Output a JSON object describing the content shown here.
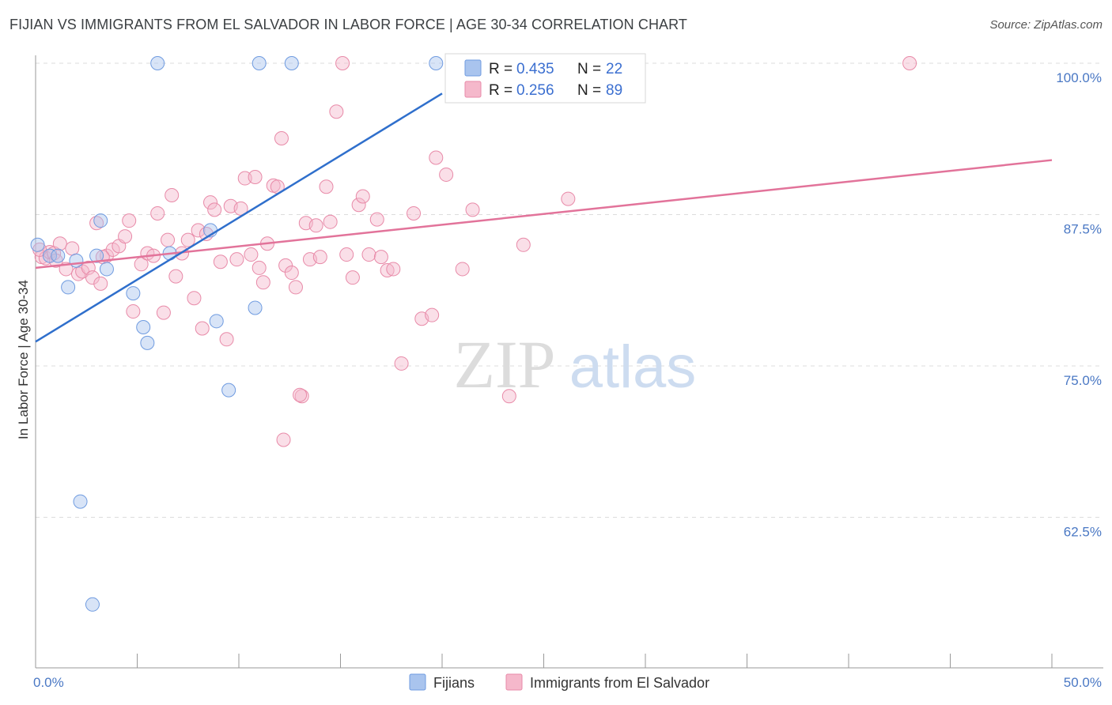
{
  "title": "FIJIAN VS IMMIGRANTS FROM EL SALVADOR IN LABOR FORCE | AGE 30-34 CORRELATION CHART",
  "source": "Source: ZipAtlas.com",
  "colors": {
    "blue_fill": "#a9c4ee",
    "blue_stroke": "#6f9be0",
    "blue_line": "#2f6fcc",
    "pink_fill": "#f5b8cb",
    "pink_stroke": "#e88aa8",
    "pink_line": "#e2739a",
    "grid": "#dcdcdc",
    "axis_text": "#4a78c4"
  },
  "chart_data": {
    "type": "scatter",
    "title": "FIJIAN VS IMMIGRANTS FROM EL SALVADOR IN LABOR FORCE | AGE 30-34 CORRELATION CHART",
    "xlabel": "",
    "ylabel": "In Labor Force | Age 30-34",
    "xlim": [
      0,
      50
    ],
    "ylim": [
      50,
      102
    ],
    "x_tick_labels": [
      "0.0%",
      "50.0%"
    ],
    "y_ticks": [
      62.5,
      75.0,
      87.5,
      100.0
    ],
    "y_tick_labels": [
      "62.5%",
      "75.0%",
      "87.5%",
      "100.0%"
    ],
    "grid": true,
    "legend_position": "top-center",
    "watermark": "ZIPatlas",
    "series": [
      {
        "name": "Fijians",
        "color": "blue",
        "R": "0.435",
        "N": "22",
        "trend": {
          "x": [
            0,
            20
          ],
          "y": [
            77.0,
            97.5
          ]
        },
        "points": [
          [
            0.1,
            85.0
          ],
          [
            0.7,
            84.1
          ],
          [
            1.1,
            84.1
          ],
          [
            1.6,
            81.5
          ],
          [
            2.0,
            83.7
          ],
          [
            2.2,
            63.8
          ],
          [
            2.8,
            55.3
          ],
          [
            3.0,
            84.1
          ],
          [
            3.2,
            87.0
          ],
          [
            4.8,
            81.0
          ],
          [
            5.3,
            78.2
          ],
          [
            5.5,
            76.9
          ],
          [
            6.0,
            100.0
          ],
          [
            6.6,
            84.3
          ],
          [
            8.6,
            86.2
          ],
          [
            8.9,
            78.7
          ],
          [
            9.5,
            73.0
          ],
          [
            10.8,
            79.8
          ],
          [
            11.0,
            100.0
          ],
          [
            12.6,
            100.0
          ],
          [
            19.7,
            100.0
          ],
          [
            3.5,
            83.0
          ]
        ]
      },
      {
        "name": "Immigrants from El Salvador",
        "color": "pink",
        "R": "0.256",
        "N": "89",
        "trend": {
          "x": [
            0,
            50
          ],
          "y": [
            83.1,
            92.0
          ]
        },
        "points": [
          [
            0.3,
            84.0
          ],
          [
            0.5,
            83.9
          ],
          [
            0.7,
            84.4
          ],
          [
            0.9,
            84.3
          ],
          [
            1.0,
            83.7
          ],
          [
            1.2,
            85.1
          ],
          [
            1.5,
            83.0
          ],
          [
            1.8,
            84.7
          ],
          [
            2.1,
            82.6
          ],
          [
            2.3,
            82.8
          ],
          [
            2.6,
            83.1
          ],
          [
            2.8,
            82.3
          ],
          [
            3.0,
            86.8
          ],
          [
            3.2,
            81.8
          ],
          [
            3.5,
            84.1
          ],
          [
            3.8,
            84.6
          ],
          [
            4.1,
            84.9
          ],
          [
            4.4,
            85.7
          ],
          [
            4.6,
            87.0
          ],
          [
            4.8,
            79.5
          ],
          [
            5.2,
            83.4
          ],
          [
            5.5,
            84.3
          ],
          [
            5.8,
            84.1
          ],
          [
            6.0,
            87.6
          ],
          [
            6.3,
            79.4
          ],
          [
            6.5,
            85.4
          ],
          [
            6.7,
            89.1
          ],
          [
            6.9,
            82.4
          ],
          [
            7.2,
            84.3
          ],
          [
            7.5,
            85.4
          ],
          [
            7.8,
            80.6
          ],
          [
            8.0,
            86.2
          ],
          [
            8.2,
            78.1
          ],
          [
            8.4,
            85.9
          ],
          [
            8.6,
            88.5
          ],
          [
            8.8,
            87.9
          ],
          [
            9.1,
            83.6
          ],
          [
            9.4,
            77.2
          ],
          [
            9.6,
            88.2
          ],
          [
            9.9,
            83.8
          ],
          [
            10.1,
            88.0
          ],
          [
            10.3,
            90.5
          ],
          [
            10.6,
            84.2
          ],
          [
            10.8,
            90.6
          ],
          [
            11.0,
            83.1
          ],
          [
            11.2,
            81.9
          ],
          [
            11.4,
            85.1
          ],
          [
            11.7,
            89.9
          ],
          [
            11.9,
            89.8
          ],
          [
            12.1,
            93.8
          ],
          [
            12.3,
            83.3
          ],
          [
            12.6,
            82.7
          ],
          [
            12.8,
            81.5
          ],
          [
            13.1,
            72.5
          ],
          [
            13.3,
            86.8
          ],
          [
            13.5,
            83.8
          ],
          [
            13.8,
            86.6
          ],
          [
            14.0,
            84.0
          ],
          [
            14.3,
            89.8
          ],
          [
            14.5,
            86.9
          ],
          [
            14.8,
            96.0
          ],
          [
            15.1,
            100.0
          ],
          [
            15.3,
            84.2
          ],
          [
            15.6,
            82.3
          ],
          [
            15.9,
            88.3
          ],
          [
            16.1,
            89.0
          ],
          [
            16.4,
            84.2
          ],
          [
            16.8,
            87.1
          ],
          [
            17.0,
            84.0
          ],
          [
            17.3,
            82.9
          ],
          [
            17.6,
            83.0
          ],
          [
            18.0,
            75.2
          ],
          [
            18.6,
            87.6
          ],
          [
            19.0,
            78.9
          ],
          [
            19.5,
            79.2
          ],
          [
            19.7,
            92.2
          ],
          [
            20.2,
            90.8
          ],
          [
            21.0,
            83.0
          ],
          [
            21.5,
            87.9
          ],
          [
            22.0,
            100.0
          ],
          [
            23.3,
            72.5
          ],
          [
            24.0,
            85.0
          ],
          [
            26.2,
            88.8
          ],
          [
            43.0,
            100.0
          ],
          [
            12.2,
            68.9
          ],
          [
            20.8,
            97.3
          ],
          [
            3.3,
            84.0
          ],
          [
            0.2,
            84.6
          ],
          [
            13.0,
            72.6
          ]
        ]
      }
    ]
  },
  "legend": {
    "rows": [
      {
        "r_label": "R =",
        "r_value": "0.435",
        "n_label": "N =",
        "n_value": "22"
      },
      {
        "r_label": "R =",
        "r_value": "0.256",
        "n_label": "N =",
        "n_value": "89"
      }
    ]
  },
  "bottom_legend": {
    "items": [
      {
        "label": "Fijians"
      },
      {
        "label": "Immigrants from El Salvador"
      }
    ]
  },
  "watermark": {
    "zip": "ZIP",
    "atlas": "atlas"
  }
}
